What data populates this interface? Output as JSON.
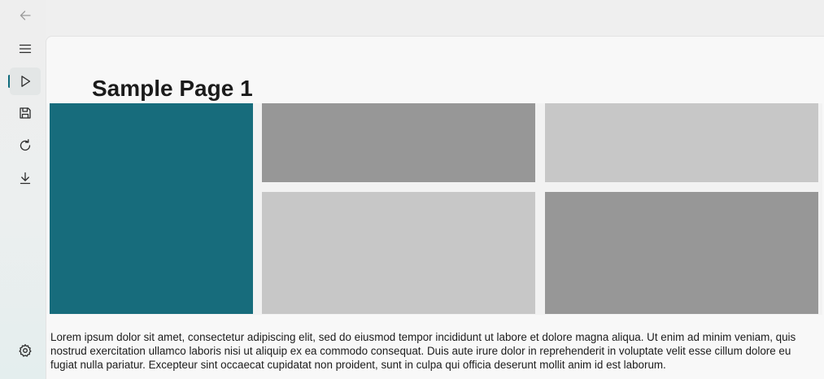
{
  "nav": {
    "items": [
      {
        "name": "back",
        "icon": "back-arrow-icon"
      },
      {
        "name": "menu",
        "icon": "hamburger-menu-icon"
      },
      {
        "name": "play",
        "icon": "play-icon",
        "selected": true
      },
      {
        "name": "save",
        "icon": "save-icon"
      },
      {
        "name": "refresh",
        "icon": "refresh-icon"
      },
      {
        "name": "download",
        "icon": "download-icon"
      },
      {
        "name": "settings",
        "icon": "settings-gear-icon"
      }
    ],
    "accent_color": "#0f6b7c"
  },
  "page": {
    "title": "Sample Page 1",
    "tiles": [
      {
        "color": "#176c7c"
      },
      {
        "color": "#979797"
      },
      {
        "color": "#c7c7c7"
      },
      {
        "color": "#c7c7c7"
      },
      {
        "color": "#979797"
      }
    ],
    "body_text": "Lorem ipsum dolor sit amet, consectetur adipiscing elit, sed do eiusmod tempor incididunt ut labore et dolore magna aliqua. Ut enim ad minim veniam, quis nostrud exercitation ullamco laboris nisi ut aliquip ex ea commodo consequat. Duis aute irure dolor in reprehenderit in voluptate velit esse cillum dolore eu fugiat nulla pariatur. Excepteur sint occaecat cupidatat non proident, sunt in culpa qui officia deserunt mollit anim id est laborum."
  }
}
